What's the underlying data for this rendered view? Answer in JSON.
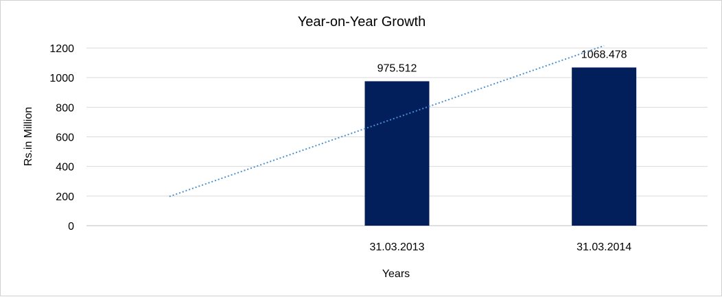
{
  "chart_data": {
    "type": "bar",
    "title": "Year-on-Year Growth",
    "xlabel": "Years",
    "ylabel": "Rs.in Million",
    "categories": [
      "",
      "31.03.2013",
      "31.03.2014"
    ],
    "values": [
      null,
      975.512,
      1068.478
    ],
    "data_labels": [
      "",
      "975.512",
      "1068.478"
    ],
    "ylim": [
      0,
      1200
    ],
    "yticks": [
      "0",
      "200",
      "400",
      "600",
      "800",
      "1000",
      "1200"
    ],
    "grid": true,
    "trendline": {
      "type": "linear",
      "style": "dotted"
    },
    "colors": {
      "bar": "#021f5c",
      "trendline": "#4a90d0",
      "grid": "#d9d9d9",
      "axis": "#bfbfbf"
    }
  }
}
